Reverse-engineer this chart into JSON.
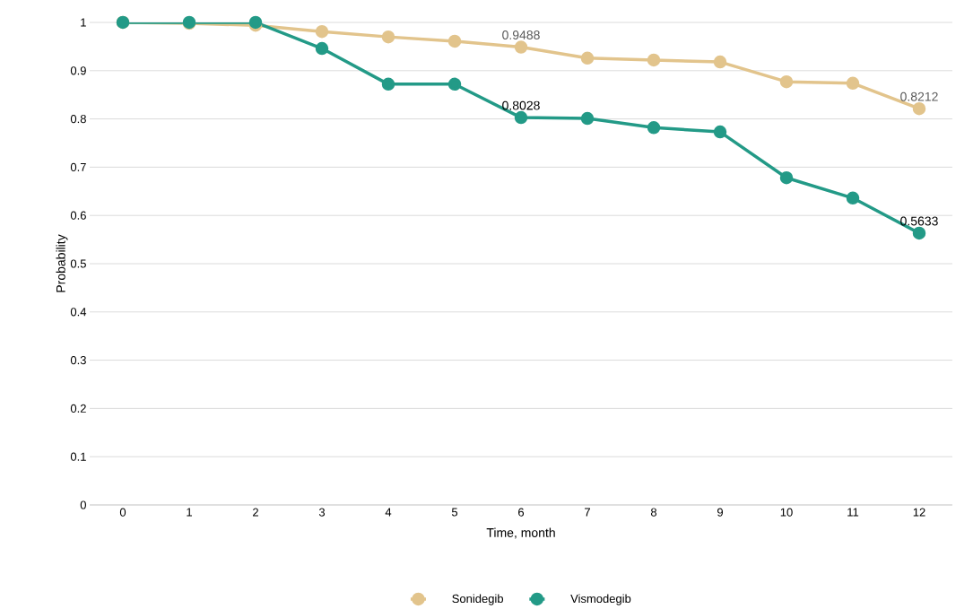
{
  "chart_data": {
    "type": "line",
    "xlabel": "Time, month",
    "ylabel": "Probability",
    "categories": [
      "0",
      "1",
      "2",
      "3",
      "4",
      "5",
      "6",
      "7",
      "8",
      "9",
      "10",
      "11",
      "12"
    ],
    "series": [
      {
        "name": "Sonidegib",
        "color": "#e2c48c",
        "values": [
          1,
          0.998,
          0.994,
          0.981,
          0.97,
          0.961,
          0.9488,
          0.926,
          0.922,
          0.918,
          0.877,
          0.874,
          0.8212
        ],
        "value_labels": [
          null,
          null,
          null,
          null,
          null,
          null,
          "0.9488",
          null,
          null,
          null,
          null,
          null,
          "0.8212"
        ]
      },
      {
        "name": "Vismodegib",
        "color": "#239a87",
        "values": [
          1,
          1,
          1,
          0.946,
          0.872,
          0.872,
          0.8028,
          0.801,
          0.782,
          0.773,
          0.678,
          0.636,
          0.5633
        ],
        "value_labels": [
          null,
          null,
          null,
          null,
          null,
          null,
          "0.8028",
          null,
          null,
          null,
          null,
          null,
          "0.5633"
        ]
      }
    ],
    "ylim": [
      0,
      1
    ],
    "yticks": [
      0,
      0.1,
      0.2,
      0.3,
      0.4,
      0.5,
      0.6,
      0.7,
      0.8,
      0.9,
      1
    ],
    "grid": "y",
    "legend": "bottom",
    "marker": "circle",
    "line_style": "solid"
  }
}
